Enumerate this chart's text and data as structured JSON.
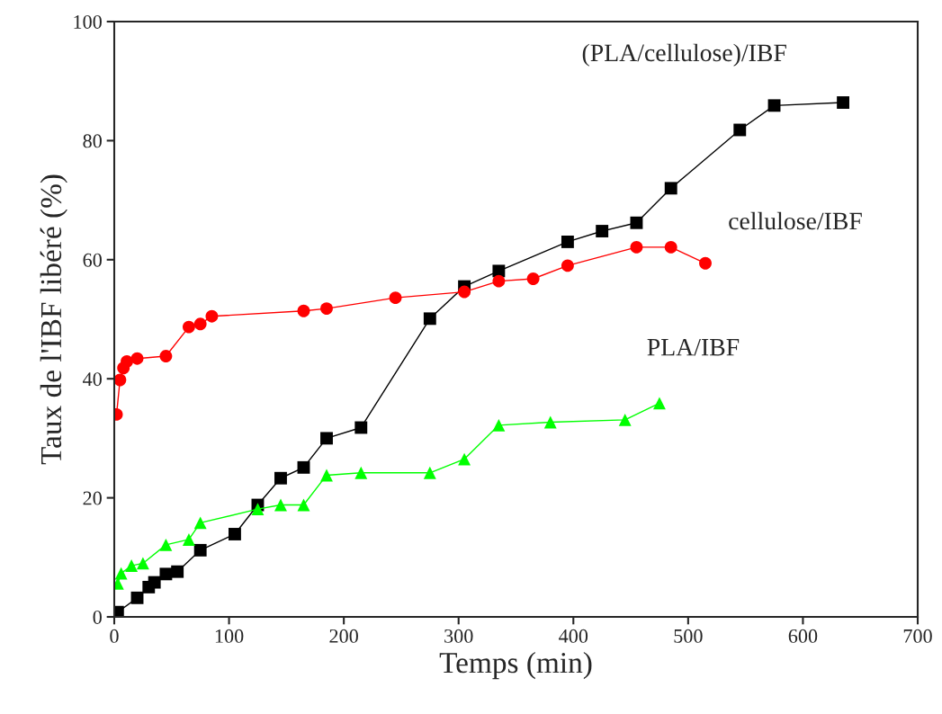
{
  "chart_data": {
    "type": "line",
    "xlabel": "Temps (min)",
    "ylabel": "Taux de l'IBF libéré (%)",
    "xlim": [
      0,
      700
    ],
    "xticks": [
      0,
      100,
      200,
      300,
      400,
      500,
      600,
      700
    ],
    "ylim": [
      0,
      100
    ],
    "yticks": [
      0,
      20,
      40,
      60,
      80,
      100
    ],
    "grid": false,
    "legend": false,
    "series": [
      {
        "name": "(PLA/cellulose)/IBF",
        "color": "#000000",
        "marker": "square",
        "x": [
          3,
          20,
          30,
          35,
          45,
          55,
          75,
          105,
          125,
          145,
          165,
          185,
          215,
          275,
          305,
          335,
          395,
          425,
          455,
          485,
          545,
          575,
          635
        ],
        "values": [
          0.8,
          3.2,
          5,
          5.8,
          7.2,
          7.6,
          11.2,
          13.9,
          18.8,
          23.3,
          25.1,
          30,
          31.8,
          50.1,
          55.5,
          58.1,
          63,
          64.8,
          66.2,
          72,
          81.8,
          85.9,
          86.4
        ]
      },
      {
        "name": "cellulose/IBF",
        "color": "#ff0000",
        "marker": "circle",
        "x": [
          2,
          5,
          8,
          11,
          20,
          45,
          65,
          75,
          85,
          165,
          185,
          245,
          305,
          335,
          365,
          395,
          455,
          485,
          515
        ],
        "values": [
          34,
          39.8,
          41.8,
          42.9,
          43.4,
          43.8,
          48.7,
          49.2,
          50.5,
          51.4,
          51.8,
          53.6,
          54.6,
          56.4,
          56.8,
          59,
          62.1,
          62.1,
          59.4
        ]
      },
      {
        "name": "PLA/IBF",
        "color": "#00ff00",
        "marker": "triangle",
        "x": [
          3,
          6,
          15,
          25,
          45,
          65,
          75,
          125,
          145,
          165,
          185,
          215,
          275,
          305,
          335,
          380,
          445,
          475
        ],
        "values": [
          5.6,
          7.3,
          8.6,
          9,
          12.1,
          13,
          15.8,
          18.1,
          18.8,
          18.8,
          23.8,
          24.2,
          24.2,
          26.5,
          32.2,
          32.7,
          33.1,
          35.9
        ]
      }
    ]
  }
}
